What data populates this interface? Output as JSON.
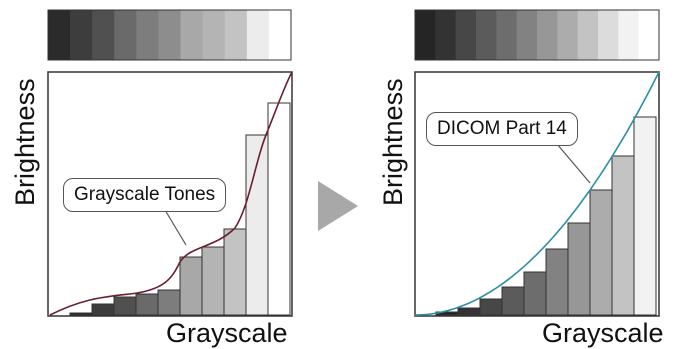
{
  "left_panel": {
    "ylabel": "Brightness",
    "xlabel": "Grayscale",
    "callout": "Grayscale Tones",
    "strip_colors": [
      "#2b2b2b",
      "#3d3d3d",
      "#505050",
      "#6a6a6a",
      "#7d7d7d",
      "#8d8d8d",
      "#a8a8a8",
      "#b4b4b4",
      "#c3c3c3",
      "#ececec",
      "#ffffff"
    ],
    "curve_color": "#6a1f2e"
  },
  "right_panel": {
    "ylabel": "Brightness",
    "xlabel": "Grayscale",
    "callout": "DICOM Part 14",
    "strip_colors": [
      "#252525",
      "#333333",
      "#474747",
      "#5b5b5b",
      "#6d6d6d",
      "#828282",
      "#979797",
      "#acacac",
      "#c3c3c3",
      "#dcdcdc",
      "#f2f2f2",
      "#ffffff"
    ],
    "curve_color": "#2a8fa5"
  },
  "arrow_color": "#a8a8a8"
}
